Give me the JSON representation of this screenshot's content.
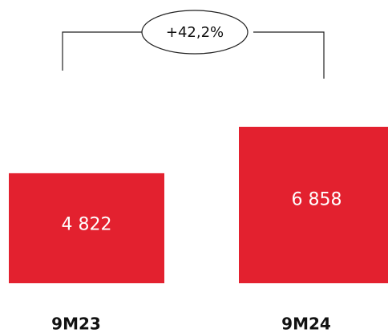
{
  "chart_data": {
    "type": "bar",
    "categories": [
      "9M23",
      "9M24"
    ],
    "values": [
      4822,
      6858
    ],
    "value_labels": [
      "4 822",
      "6 858"
    ],
    "annotation": "+42,2%",
    "colors": {
      "bar": "#e3212f",
      "value_text": "#ffffff"
    },
    "grid": false,
    "legend": "none"
  }
}
